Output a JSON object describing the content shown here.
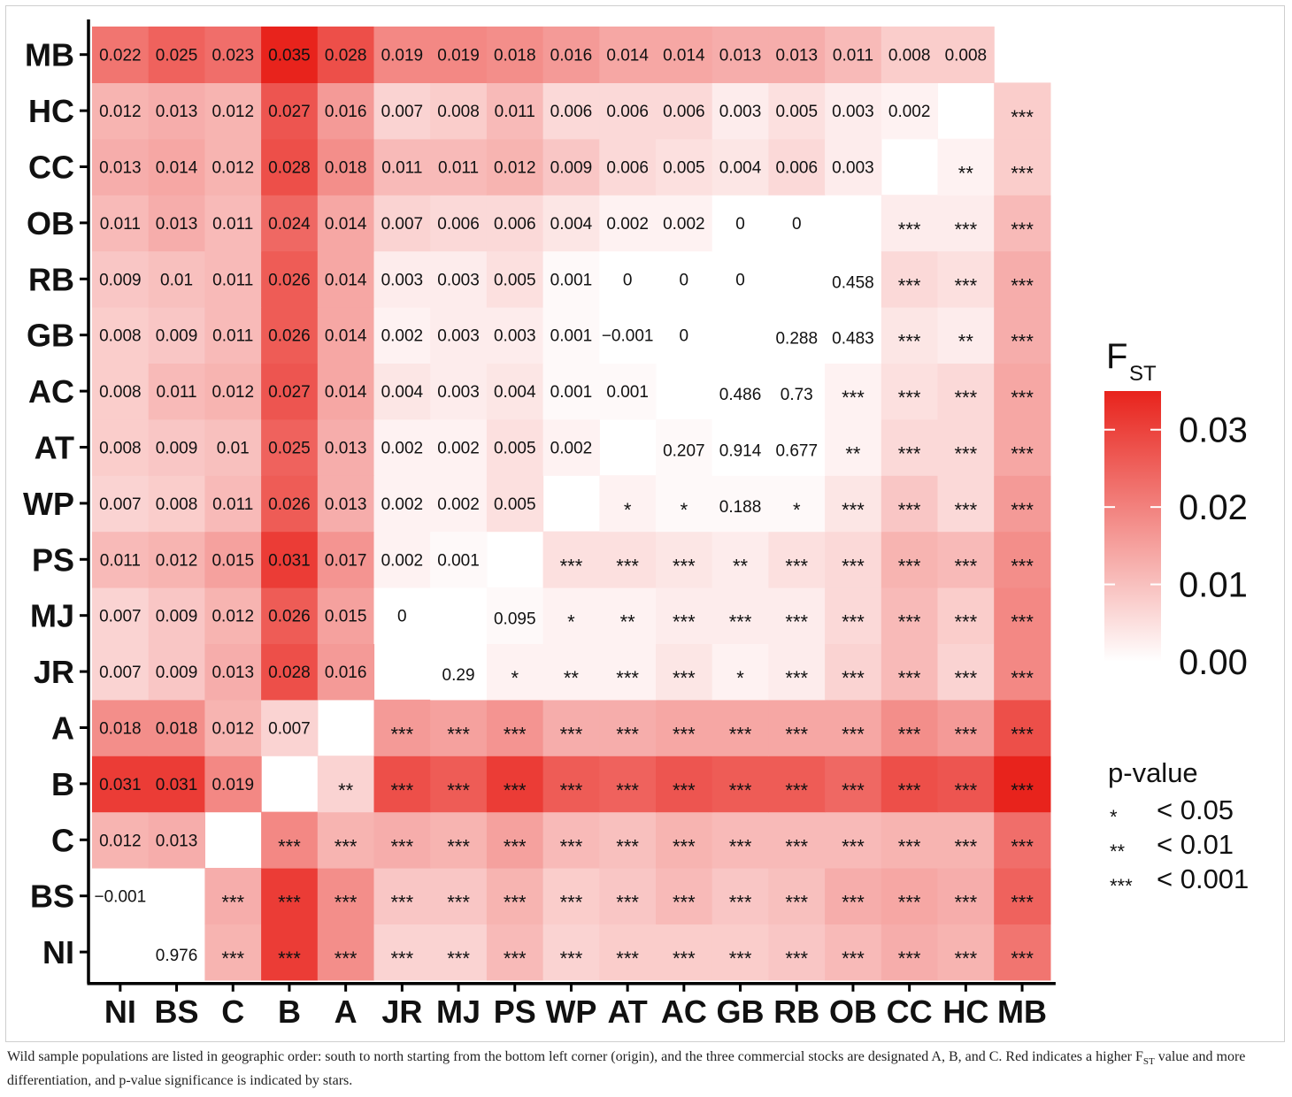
{
  "chart_data": {
    "type": "heatmap",
    "populations": [
      "NI",
      "BS",
      "C",
      "B",
      "A",
      "JR",
      "MJ",
      "PS",
      "WP",
      "AT",
      "AC",
      "GB",
      "RB",
      "OB",
      "CC",
      "HC",
      "MB"
    ],
    "description": "Lower-left triangle: pairwise FST values (row = y-axis population, column = x-axis population). Upper-right triangle: p-values or significance stars.",
    "fst": {
      "MB": [
        "0.022",
        "0.025",
        "0.023",
        "0.035",
        "0.028",
        "0.019",
        "0.019",
        "0.018",
        "0.016",
        "0.014",
        "0.014",
        "0.013",
        "0.013",
        "0.011",
        "0.008",
        "0.008"
      ],
      "HC": [
        "0.012",
        "0.013",
        "0.012",
        "0.027",
        "0.016",
        "0.007",
        "0.008",
        "0.011",
        "0.006",
        "0.006",
        "0.006",
        "0.003",
        "0.005",
        "0.003",
        "0.002"
      ],
      "CC": [
        "0.013",
        "0.014",
        "0.012",
        "0.028",
        "0.018",
        "0.011",
        "0.011",
        "0.012",
        "0.009",
        "0.006",
        "0.005",
        "0.004",
        "0.006",
        "0.003"
      ],
      "OB": [
        "0.011",
        "0.013",
        "0.011",
        "0.024",
        "0.014",
        "0.007",
        "0.006",
        "0.006",
        "0.004",
        "0.002",
        "0.002",
        "0",
        "0"
      ],
      "RB": [
        "0.009",
        "0.01",
        "0.011",
        "0.026",
        "0.014",
        "0.003",
        "0.003",
        "0.005",
        "0.001",
        "0",
        "0",
        "0"
      ],
      "GB": [
        "0.008",
        "0.009",
        "0.011",
        "0.026",
        "0.014",
        "0.002",
        "0.003",
        "0.003",
        "0.001",
        "−0.001",
        "0"
      ],
      "AC": [
        "0.008",
        "0.011",
        "0.012",
        "0.027",
        "0.014",
        "0.004",
        "0.003",
        "0.004",
        "0.001",
        "0.001"
      ],
      "AT": [
        "0.008",
        "0.009",
        "0.01",
        "0.025",
        "0.013",
        "0.002",
        "0.002",
        "0.005",
        "0.002"
      ],
      "WP": [
        "0.007",
        "0.008",
        "0.011",
        "0.026",
        "0.013",
        "0.002",
        "0.002",
        "0.005"
      ],
      "PS": [
        "0.011",
        "0.012",
        "0.015",
        "0.031",
        "0.017",
        "0.002",
        "0.001"
      ],
      "MJ": [
        "0.007",
        "0.009",
        "0.012",
        "0.026",
        "0.015",
        "0"
      ],
      "JR": [
        "0.007",
        "0.009",
        "0.013",
        "0.028",
        "0.016"
      ],
      "A": [
        "0.018",
        "0.018",
        "0.012",
        "0.007"
      ],
      "B": [
        "0.031",
        "0.031",
        "0.019"
      ],
      "C": [
        "0.012",
        "0.013"
      ],
      "BS": [
        "−0.001"
      ],
      "NI": []
    },
    "pvalues": {
      "NI": [
        "0.976",
        "***",
        "***",
        "***",
        "***",
        "***",
        "***",
        "***",
        "***",
        "***",
        "***",
        "***",
        "***",
        "***",
        "***",
        "***"
      ],
      "BS": [
        "***",
        "***",
        "***",
        "***",
        "***",
        "***",
        "***",
        "***",
        "***",
        "***",
        "***",
        "***",
        "***",
        "***",
        "***"
      ],
      "C": [
        "***",
        "***",
        "***",
        "***",
        "***",
        "***",
        "***",
        "***",
        "***",
        "***",
        "***",
        "***",
        "***",
        "***"
      ],
      "B": [
        "**",
        "***",
        "***",
        "***",
        "***",
        "***",
        "***",
        "***",
        "***",
        "***",
        "***",
        "***",
        "***"
      ],
      "A": [
        "***",
        "***",
        "***",
        "***",
        "***",
        "***",
        "***",
        "***",
        "***",
        "***",
        "***",
        "***"
      ],
      "JR": [
        "0.29",
        "*",
        "**",
        "***",
        "***",
        "*",
        "***",
        "***",
        "***",
        "***",
        "***"
      ],
      "MJ": [
        "0.095",
        "*",
        "**",
        "***",
        "***",
        "***",
        "***",
        "***",
        "***",
        "***"
      ],
      "PS": [
        "***",
        "***",
        "***",
        "**",
        "***",
        "***",
        "***",
        "***",
        "***"
      ],
      "WP": [
        "*",
        "*",
        "0.188",
        "*",
        "***",
        "***",
        "***",
        "***"
      ],
      "AT": [
        "0.207",
        "0.914",
        "0.677",
        "**",
        "***",
        "***",
        "***"
      ],
      "AC": [
        "0.486",
        "0.73",
        "***",
        "***",
        "***",
        "***"
      ],
      "GB": [
        "0.288",
        "0.483",
        "***",
        "**",
        "***"
      ],
      "RB": [
        "0.458",
        "***",
        "***",
        "***"
      ],
      "OB": [
        "***",
        "***",
        "***"
      ],
      "CC": [
        "**",
        "***"
      ],
      "HC": [
        "***"
      ],
      "MB": []
    },
    "legend": {
      "fill_title_main": "F",
      "fill_title_sub": "ST",
      "ticks": [
        0.03,
        0.02,
        0.01,
        0.0
      ],
      "tick_labels": [
        "0.03",
        "0.02",
        "0.01",
        "0.00"
      ],
      "scale_min": 0.0,
      "scale_max": 0.035,
      "color_low": "#ffffff",
      "color_high": "#e8231c"
    },
    "pvalue_legend": {
      "title": "p-value",
      "entries": [
        {
          "symbol": "*",
          "label": "< 0.05"
        },
        {
          "symbol": "**",
          "label": "< 0.01"
        },
        {
          "symbol": "***",
          "label": "< 0.001"
        }
      ]
    }
  },
  "caption": {
    "part1": "Wild sample populations are listed in geographic order: south to north starting from the bottom left corner (origin), and the three commercial stocks are designated A, B, and C. Red indicates a higher F",
    "sub": "ST",
    "part2": " value and more differentiation, and p-value significance is indicated by stars."
  }
}
